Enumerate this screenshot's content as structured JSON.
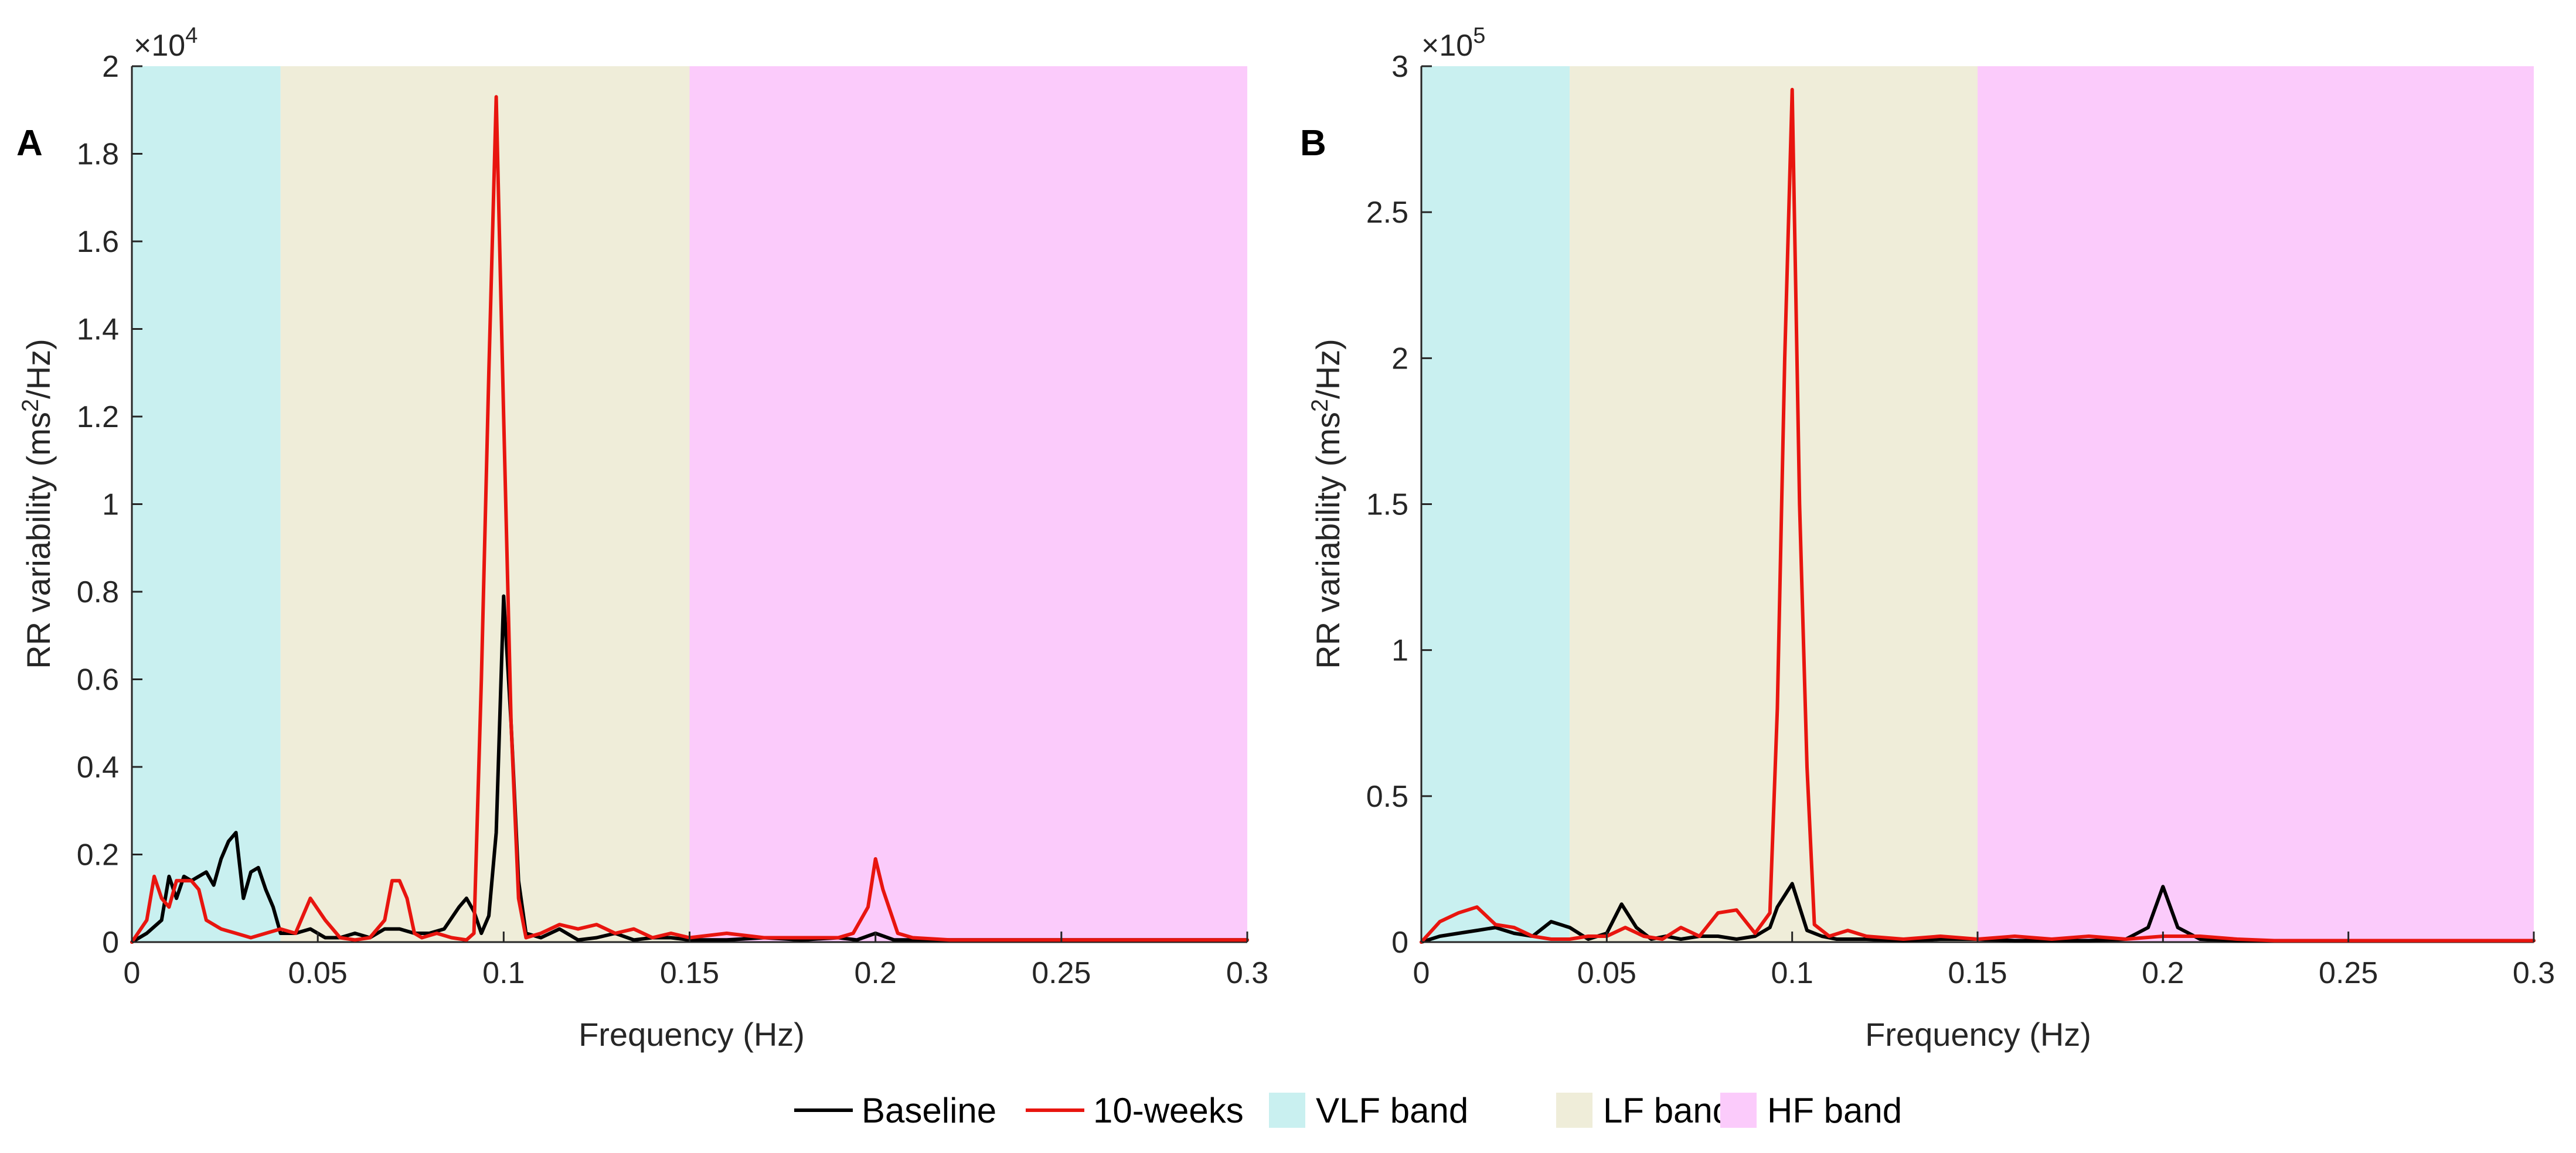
{
  "legend": {
    "items": [
      {
        "label": "Baseline",
        "kind": "line",
        "color": "#000000"
      },
      {
        "label": "10-weeks",
        "kind": "line",
        "color": "#e8150f"
      },
      {
        "label": "VLF band",
        "kind": "patch",
        "color": "#c9f0f0"
      },
      {
        "label": "LF band",
        "kind": "patch",
        "color": "#efedd9"
      },
      {
        "label": "HF band",
        "kind": "patch",
        "color": "#fbcbfb"
      }
    ]
  },
  "chart_data": [
    {
      "panel": "A",
      "type": "line",
      "xlabel": "Frequency (Hz)",
      "ylabel": "RR variability (ms²/Hz)",
      "ylabel_base": "RR variability (ms",
      "ylabel_sup": "2",
      "ylabel_tail": "/Hz)",
      "exponent": "×10",
      "exponent_power": "4",
      "xlim": [
        0,
        0.3
      ],
      "ylim": [
        0,
        2
      ],
      "xticks": [
        0,
        0.05,
        0.1,
        0.15,
        0.2,
        0.25,
        0.3
      ],
      "xtick_labels": [
        "0",
        "0.05",
        "0.1",
        "0.15",
        "0.2",
        "0.25",
        "0.3"
      ],
      "yticks": [
        0,
        0.2,
        0.4,
        0.6,
        0.8,
        1,
        1.2,
        1.4,
        1.6,
        1.8,
        2
      ],
      "ytick_labels": [
        "0",
        "0.2",
        "0.4",
        "0.6",
        "0.8",
        "1",
        "1.2",
        "1.4",
        "1.6",
        "1.8",
        "2"
      ],
      "bands": [
        {
          "name": "VLF band",
          "from": 0,
          "to": 0.04,
          "color": "#c9f0f0"
        },
        {
          "name": "LF band",
          "from": 0.04,
          "to": 0.15,
          "color": "#efedd9"
        },
        {
          "name": "HF band",
          "from": 0.15,
          "to": 0.3,
          "color": "#fbcbfb"
        }
      ],
      "series": [
        {
          "name": "Baseline",
          "color": "#000000",
          "x": [
            0,
            0.004,
            0.008,
            0.01,
            0.012,
            0.014,
            0.016,
            0.018,
            0.02,
            0.022,
            0.024,
            0.026,
            0.028,
            0.03,
            0.032,
            0.034,
            0.036,
            0.038,
            0.04,
            0.044,
            0.048,
            0.052,
            0.056,
            0.06,
            0.064,
            0.068,
            0.072,
            0.076,
            0.08,
            0.084,
            0.088,
            0.09,
            0.092,
            0.094,
            0.096,
            0.098,
            0.1,
            0.102,
            0.104,
            0.106,
            0.11,
            0.115,
            0.12,
            0.125,
            0.13,
            0.135,
            0.14,
            0.145,
            0.15,
            0.16,
            0.17,
            0.18,
            0.19,
            0.195,
            0.2,
            0.205,
            0.21,
            0.22,
            0.23,
            0.24,
            0.25,
            0.26,
            0.27,
            0.28,
            0.29,
            0.3
          ],
          "values": [
            0,
            0.02,
            0.05,
            0.15,
            0.1,
            0.15,
            0.14,
            0.15,
            0.16,
            0.13,
            0.19,
            0.23,
            0.25,
            0.1,
            0.16,
            0.17,
            0.12,
            0.08,
            0.02,
            0.02,
            0.03,
            0.01,
            0.01,
            0.02,
            0.01,
            0.03,
            0.03,
            0.02,
            0.02,
            0.03,
            0.08,
            0.1,
            0.07,
            0.02,
            0.06,
            0.25,
            0.79,
            0.5,
            0.14,
            0.02,
            0.01,
            0.03,
            0.005,
            0.01,
            0.02,
            0.005,
            0.01,
            0.01,
            0.005,
            0.005,
            0.01,
            0.005,
            0.01,
            0.005,
            0.02,
            0.005,
            0.005,
            0.005,
            0.005,
            0.005,
            0.005,
            0.005,
            0.005,
            0.005,
            0.005,
            0.005
          ]
        },
        {
          "name": "10-weeks",
          "color": "#e8150f",
          "x": [
            0,
            0.004,
            0.006,
            0.008,
            0.01,
            0.012,
            0.014,
            0.016,
            0.018,
            0.02,
            0.024,
            0.028,
            0.032,
            0.036,
            0.04,
            0.044,
            0.048,
            0.052,
            0.056,
            0.06,
            0.064,
            0.068,
            0.07,
            0.072,
            0.074,
            0.076,
            0.078,
            0.082,
            0.086,
            0.09,
            0.092,
            0.094,
            0.096,
            0.098,
            0.1,
            0.102,
            0.104,
            0.106,
            0.11,
            0.115,
            0.12,
            0.125,
            0.13,
            0.135,
            0.14,
            0.145,
            0.15,
            0.16,
            0.17,
            0.18,
            0.19,
            0.194,
            0.198,
            0.2,
            0.202,
            0.206,
            0.21,
            0.22,
            0.23,
            0.24,
            0.25,
            0.26,
            0.27,
            0.28,
            0.29,
            0.3
          ],
          "values": [
            0,
            0.05,
            0.15,
            0.1,
            0.08,
            0.14,
            0.14,
            0.14,
            0.12,
            0.05,
            0.03,
            0.02,
            0.01,
            0.02,
            0.03,
            0.02,
            0.1,
            0.05,
            0.01,
            0.005,
            0.01,
            0.05,
            0.14,
            0.14,
            0.1,
            0.02,
            0.01,
            0.02,
            0.01,
            0.005,
            0.02,
            0.6,
            1.3,
            1.93,
            1.2,
            0.5,
            0.1,
            0.01,
            0.02,
            0.04,
            0.03,
            0.04,
            0.02,
            0.03,
            0.01,
            0.02,
            0.01,
            0.02,
            0.01,
            0.01,
            0.01,
            0.02,
            0.08,
            0.19,
            0.12,
            0.02,
            0.01,
            0.005,
            0.005,
            0.005,
            0.005,
            0.005,
            0.005,
            0.005,
            0.005,
            0.005
          ]
        }
      ]
    },
    {
      "panel": "B",
      "type": "line",
      "xlabel": "Frequency (Hz)",
      "ylabel": "RR variability (ms²/Hz)",
      "ylabel_base": "RR variability (ms",
      "ylabel_sup": "2",
      "ylabel_tail": "/Hz)",
      "exponent": "×10",
      "exponent_power": "5",
      "xlim": [
        0,
        0.3
      ],
      "ylim": [
        0,
        3
      ],
      "xticks": [
        0,
        0.05,
        0.1,
        0.15,
        0.2,
        0.25,
        0.3
      ],
      "xtick_labels": [
        "0",
        "0.05",
        "0.1",
        "0.15",
        "0.2",
        "0.25",
        "0.3"
      ],
      "yticks": [
        0,
        0.5,
        1,
        1.5,
        2,
        2.5,
        3
      ],
      "ytick_labels": [
        "0",
        "0.5",
        "1",
        "1.5",
        "2",
        "2.5",
        "3"
      ],
      "bands": [
        {
          "name": "VLF band",
          "from": 0,
          "to": 0.04,
          "color": "#c9f0f0"
        },
        {
          "name": "LF band",
          "from": 0.04,
          "to": 0.15,
          "color": "#efedd9"
        },
        {
          "name": "HF band",
          "from": 0.15,
          "to": 0.3,
          "color": "#fbcbfb"
        }
      ],
      "series": [
        {
          "name": "Baseline",
          "color": "#000000",
          "x": [
            0,
            0.005,
            0.01,
            0.015,
            0.02,
            0.025,
            0.03,
            0.035,
            0.04,
            0.045,
            0.05,
            0.054,
            0.058,
            0.062,
            0.066,
            0.07,
            0.075,
            0.08,
            0.085,
            0.09,
            0.094,
            0.096,
            0.1,
            0.104,
            0.108,
            0.112,
            0.12,
            0.13,
            0.14,
            0.15,
            0.16,
            0.17,
            0.18,
            0.19,
            0.196,
            0.2,
            0.204,
            0.21,
            0.22,
            0.23,
            0.24,
            0.25,
            0.26,
            0.27,
            0.28,
            0.29,
            0.3
          ],
          "values": [
            0,
            0.02,
            0.03,
            0.04,
            0.05,
            0.03,
            0.02,
            0.07,
            0.05,
            0.01,
            0.03,
            0.13,
            0.05,
            0.01,
            0.02,
            0.01,
            0.02,
            0.02,
            0.01,
            0.02,
            0.05,
            0.12,
            0.2,
            0.04,
            0.02,
            0.01,
            0.01,
            0.005,
            0.01,
            0.01,
            0.005,
            0.005,
            0.005,
            0.01,
            0.05,
            0.19,
            0.05,
            0.01,
            0.005,
            0.005,
            0.005,
            0.005,
            0.005,
            0.005,
            0.005,
            0.005,
            0.005
          ]
        },
        {
          "name": "10-weeks",
          "color": "#e8150f",
          "x": [
            0,
            0.005,
            0.01,
            0.015,
            0.02,
            0.025,
            0.03,
            0.035,
            0.04,
            0.045,
            0.05,
            0.055,
            0.06,
            0.065,
            0.07,
            0.075,
            0.08,
            0.085,
            0.09,
            0.094,
            0.096,
            0.098,
            0.1,
            0.102,
            0.104,
            0.106,
            0.11,
            0.115,
            0.12,
            0.13,
            0.14,
            0.15,
            0.16,
            0.17,
            0.18,
            0.19,
            0.2,
            0.21,
            0.22,
            0.23,
            0.24,
            0.25,
            0.26,
            0.27,
            0.28,
            0.29,
            0.3
          ],
          "values": [
            0,
            0.07,
            0.1,
            0.12,
            0.06,
            0.05,
            0.02,
            0.01,
            0.01,
            0.02,
            0.02,
            0.05,
            0.02,
            0.01,
            0.05,
            0.02,
            0.1,
            0.11,
            0.03,
            0.1,
            0.8,
            2.0,
            2.92,
            1.5,
            0.6,
            0.06,
            0.02,
            0.04,
            0.02,
            0.01,
            0.02,
            0.01,
            0.02,
            0.01,
            0.02,
            0.01,
            0.02,
            0.02,
            0.01,
            0.005,
            0.005,
            0.005,
            0.005,
            0.005,
            0.005,
            0.005,
            0.005
          ]
        }
      ]
    }
  ]
}
